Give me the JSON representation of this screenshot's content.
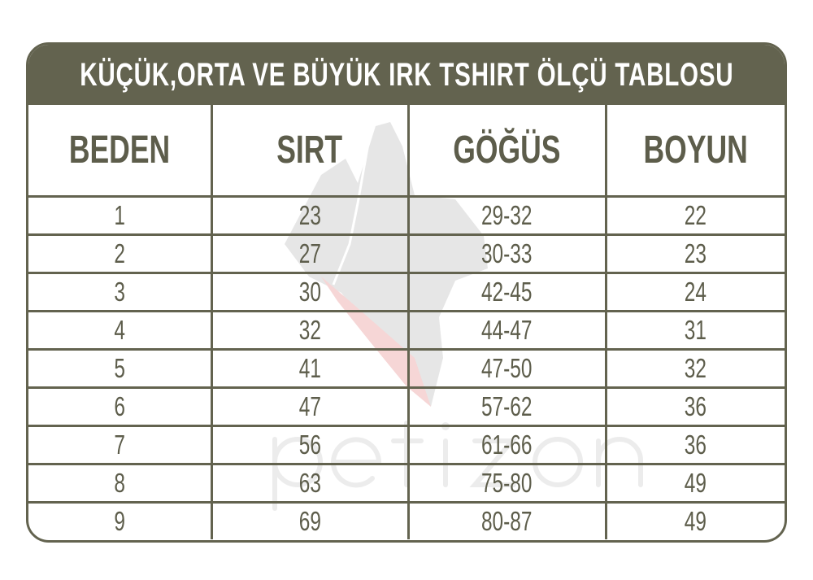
{
  "title": "KÜÇÜK,ORTA VE BÜYÜK IRK TSHIRT ÖLÇÜ TABLOSU",
  "watermark": {
    "logo_text": "petizon",
    "icon": "dog-head-silhouette"
  },
  "colors": {
    "header_bg": "#63634f",
    "text": "#5d5d4b",
    "border": "#63634f"
  },
  "columns": [
    "BEDEN",
    "SIRT",
    "GÖĞÜS",
    "BOYUN"
  ],
  "rows": [
    [
      "1",
      "23",
      "29-32",
      "22"
    ],
    [
      "2",
      "27",
      "30-33",
      "23"
    ],
    [
      "3",
      "30",
      "42-45",
      "24"
    ],
    [
      "4",
      "32",
      "44-47",
      "31"
    ],
    [
      "5",
      "41",
      "47-50",
      "32"
    ],
    [
      "6",
      "47",
      "57-62",
      "36"
    ],
    [
      "7",
      "56",
      "61-66",
      "36"
    ],
    [
      "8",
      "63",
      "75-80",
      "49"
    ],
    [
      "9",
      "69",
      "80-87",
      "49"
    ]
  ]
}
